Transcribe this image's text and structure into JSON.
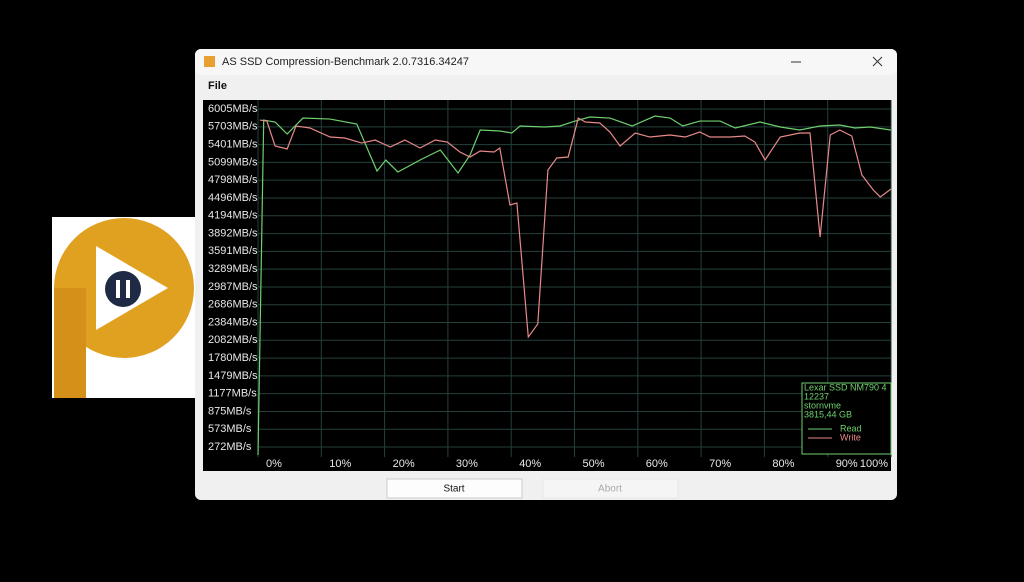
{
  "window": {
    "title": "AS SSD Compression-Benchmark 2.0.7316.34247",
    "menu": [
      "File"
    ],
    "buttons": [
      "Start",
      "Abort"
    ]
  },
  "chart_data": {
    "type": "line",
    "grid": true,
    "legend": "bottom-right",
    "device_info": [
      "Lexar SSD NM790 4",
      "12237",
      "stornvme",
      "3815,44 GB"
    ],
    "xlim": [
      0,
      100
    ],
    "xticks": [
      {
        "value": 0,
        "label": "0%"
      },
      {
        "value": 10,
        "label": "10%"
      },
      {
        "value": 20,
        "label": "20%"
      },
      {
        "value": 30,
        "label": "30%"
      },
      {
        "value": 40,
        "label": "40%"
      },
      {
        "value": 50,
        "label": "50%"
      },
      {
        "value": 60,
        "label": "60%"
      },
      {
        "value": 70,
        "label": "70%"
      },
      {
        "value": 80,
        "label": "80%"
      },
      {
        "value": 90,
        "label": "90%"
      },
      {
        "value": 100,
        "label": "100%"
      }
    ],
    "ylim": [
      -135,
      6158
    ],
    "yticks": [
      {
        "value": 6005,
        "label": "6005MB/s"
      },
      {
        "value": 5703,
        "label": "5703MB/s"
      },
      {
        "value": 5401,
        "label": "5401MB/s"
      },
      {
        "value": 5099,
        "label": "5099MB/s"
      },
      {
        "value": 4798,
        "label": "4798MB/s"
      },
      {
        "value": 4496,
        "label": "4496MB/s"
      },
      {
        "value": 4194,
        "label": "4194MB/s"
      },
      {
        "value": 3892,
        "label": "3892MB/s"
      },
      {
        "value": 3591,
        "label": "3591MB/s"
      },
      {
        "value": 3289,
        "label": "3289MB/s"
      },
      {
        "value": 2987,
        "label": "2987MB/s"
      },
      {
        "value": 2686,
        "label": "2686MB/s"
      },
      {
        "value": 2384,
        "label": "2384MB/s"
      },
      {
        "value": 2082,
        "label": "2082MB/s"
      },
      {
        "value": 1780,
        "label": "1780MB/s"
      },
      {
        "value": 1479,
        "label": "1479MB/s"
      },
      {
        "value": 1177,
        "label": "1177MB/s"
      },
      {
        "value": 875,
        "label": "875MB/s"
      },
      {
        "value": 573,
        "label": "573MB/s"
      },
      {
        "value": 272,
        "label": "272MB/s"
      }
    ],
    "series": [
      {
        "name": "Read",
        "color": "#6fd06f",
        "x": [
          0,
          0.9,
          2.7,
          4.6,
          7.1,
          11.4,
          15.6,
          18.8,
          20.2,
          22.1,
          25.6,
          28.8,
          31.6,
          33.5,
          35.1,
          38.2,
          40.1,
          41.4,
          45.3,
          47.7,
          50.1,
          52.4,
          55.6,
          59.1,
          62.7,
          65.1,
          67.1,
          69.8,
          73.0,
          75.4,
          79.3,
          82.5,
          85.6,
          88.8,
          91.9,
          94.3,
          96.7,
          100
        ],
        "values": [
          137,
          5818,
          5784,
          5581,
          5852,
          5835,
          5751,
          4953,
          5140,
          4937,
          5140,
          5310,
          4920,
          5225,
          5649,
          5632,
          5598,
          5717,
          5700,
          5717,
          5801,
          5869,
          5852,
          5717,
          5886,
          5852,
          5717,
          5801,
          5801,
          5683,
          5785,
          5700,
          5649,
          5717,
          5734,
          5683,
          5700,
          5649
        ]
      },
      {
        "name": "Write",
        "color": "#e8898a",
        "x": [
          0.3,
          1.4,
          2.7,
          4.6,
          6.0,
          8.2,
          11.4,
          13.7,
          16.4,
          18.5,
          20.9,
          23.2,
          25.6,
          28.0,
          29.9,
          31.9,
          33.5,
          35.1,
          37.3,
          38.2,
          39.8,
          40.9,
          42.7,
          44.2,
          45.8,
          47.2,
          49.0,
          50.6,
          51.7,
          54.0,
          55.6,
          57.2,
          59.6,
          61.9,
          65.1,
          67.5,
          69.8,
          71.4,
          74.6,
          76.9,
          78.5,
          80.1,
          82.5,
          85.6,
          87.2,
          88.8,
          90.4,
          91.9,
          93.8,
          95.4,
          97.2,
          98.3,
          100
        ],
        "values": [
          5818,
          5801,
          5378,
          5327,
          5717,
          5683,
          5530,
          5513,
          5428,
          5479,
          5361,
          5479,
          5344,
          5479,
          5445,
          5276,
          5191,
          5293,
          5276,
          5344,
          4377,
          4411,
          2138,
          2359,
          4970,
          5174,
          5191,
          5852,
          5785,
          5768,
          5615,
          5378,
          5598,
          5530,
          5564,
          5530,
          5615,
          5530,
          5530,
          5547,
          5445,
          5140,
          5530,
          5598,
          5598,
          3834,
          5564,
          5649,
          5547,
          4886,
          4631,
          4513,
          4649
        ]
      }
    ]
  }
}
